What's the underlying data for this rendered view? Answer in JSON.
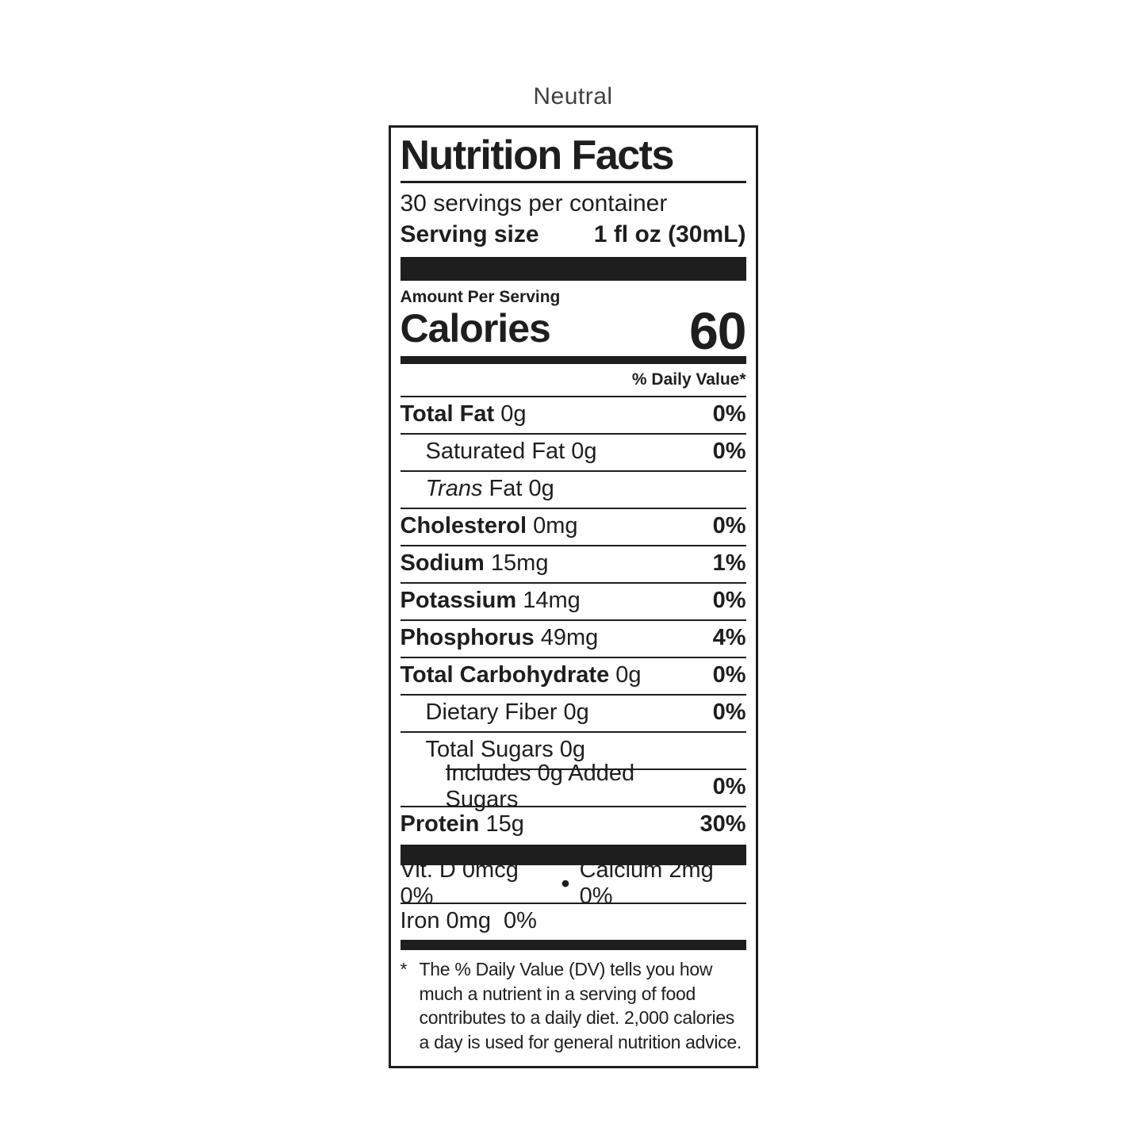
{
  "colors": {
    "ink": "#1e1e1e",
    "background": "#ffffff",
    "title_text": "#3f3f3f"
  },
  "page": {
    "title": "Neutral"
  },
  "label": {
    "title": "Nutrition Facts",
    "servings_per_container": "30 servings per container",
    "serving_size_label": "Serving size",
    "serving_size_value": "1 fl oz (30mL)",
    "amount_per_serving": "Amount Per Serving",
    "calories_label": "Calories",
    "calories_value": "60",
    "daily_value_header": "% Daily Value*",
    "rows": [
      {
        "parts": [
          {
            "t": "Total Fat",
            "b": 1
          }
        ],
        "amount": "0g",
        "dv": "0%",
        "indent": 0,
        "top": "full"
      },
      {
        "parts": [
          {
            "t": "Saturated Fat"
          }
        ],
        "amount": "0g",
        "dv": "0%",
        "indent": 1,
        "top": "full"
      },
      {
        "parts": [
          {
            "t": "Trans",
            "i": 1
          },
          {
            "t": " Fat"
          }
        ],
        "amount": "0g",
        "dv": "",
        "indent": 1,
        "top": "full"
      },
      {
        "parts": [
          {
            "t": "Cholesterol",
            "b": 1
          }
        ],
        "amount": "0mg",
        "dv": "0%",
        "indent": 0,
        "top": "full"
      },
      {
        "parts": [
          {
            "t": "Sodium",
            "b": 1
          }
        ],
        "amount": "15mg",
        "dv": "1%",
        "indent": 0,
        "top": "full"
      },
      {
        "parts": [
          {
            "t": "Potassium",
            "b": 1
          }
        ],
        "amount": "14mg",
        "dv": "0%",
        "indent": 0,
        "top": "full"
      },
      {
        "parts": [
          {
            "t": "Phosphorus",
            "b": 1
          }
        ],
        "amount": "49mg",
        "dv": "4%",
        "indent": 0,
        "top": "full"
      },
      {
        "parts": [
          {
            "t": "Total Carbohydrate",
            "b": 1
          }
        ],
        "amount": "0g",
        "dv": "0%",
        "indent": 0,
        "top": "full"
      },
      {
        "parts": [
          {
            "t": "Dietary Fiber"
          }
        ],
        "amount": "0g",
        "dv": "0%",
        "indent": 1,
        "top": "full"
      },
      {
        "parts": [
          {
            "t": "Total Sugars"
          }
        ],
        "amount": "0g",
        "dv": "",
        "indent": 1,
        "top": "full"
      },
      {
        "parts": [
          {
            "t": "Includes 0g Added Sugars"
          }
        ],
        "amount": "",
        "dv": "0%",
        "indent": 2,
        "top": "indent"
      },
      {
        "parts": [
          {
            "t": "Protein",
            "b": 1
          }
        ],
        "amount": "15g",
        "dv": "30%",
        "indent": 0,
        "top": "full"
      }
    ],
    "micronutrients": {
      "vit_d": "Vit. D 0mcg 0%",
      "bullet": "•",
      "calcium": "Calcium 2mg 0%",
      "iron_label": "Iron 0mg",
      "iron_dv": "0%"
    },
    "footnote": {
      "marker": "*",
      "text": "The % Daily Value (DV) tells you how much a nutrient in a serving of food contributes to a daily diet. 2,000 calories a day is used for general nutrition advice."
    }
  }
}
